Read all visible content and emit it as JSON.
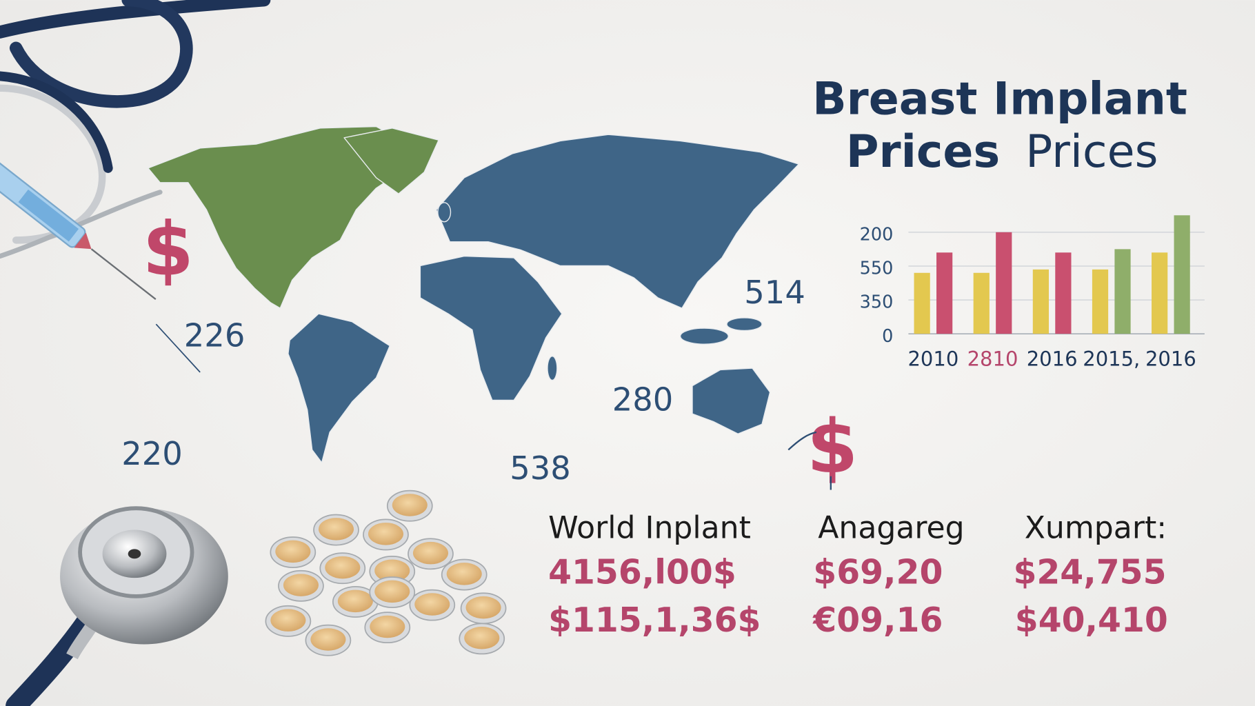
{
  "title": {
    "line1": "Breast Implant",
    "line2_bold": "Prices",
    "line2_light": "Prices"
  },
  "symbols": [
    "$",
    "$"
  ],
  "map_labels": [
    "226",
    "220",
    "538",
    "280",
    "514"
  ],
  "chart_data": {
    "type": "bar",
    "categories": [
      "2010",
      "2810",
      "2016",
      "2015,",
      "2016"
    ],
    "category_colors": [
      "#1d3557",
      "#b5456b",
      "#1d3557",
      "#1d3557",
      "#1d3557"
    ],
    "series": [
      {
        "colors": [
          "#e3c84f",
          "#e3c84f",
          "#e3c84f",
          "#e3c84f",
          "#e3c84f"
        ],
        "values": [
          1.8,
          1.8,
          1.9,
          1.9,
          2.4
        ]
      },
      {
        "colors": [
          "#c9506f",
          "#c9506f",
          "#c9506f",
          "#8fae6a",
          "#8fae6a"
        ],
        "values": [
          2.4,
          3.0,
          2.4,
          2.5,
          3.5
        ]
      }
    ],
    "ylim": [
      0,
      3.6
    ],
    "yticks": [
      0,
      {
        "value": 1,
        "label": "350"
      },
      {
        "value": 2,
        "label": "550"
      },
      {
        "value": 3,
        "label": "200"
      }
    ],
    "grid": true
  },
  "table": {
    "headers": [
      "World Inplant",
      "Anagareg",
      "Xumpart:"
    ],
    "rows": [
      [
        "4156,l00$",
        "$69,20",
        "$24,755"
      ],
      [
        "$115,1,36$",
        "€09,16",
        "$40,410"
      ]
    ]
  }
}
